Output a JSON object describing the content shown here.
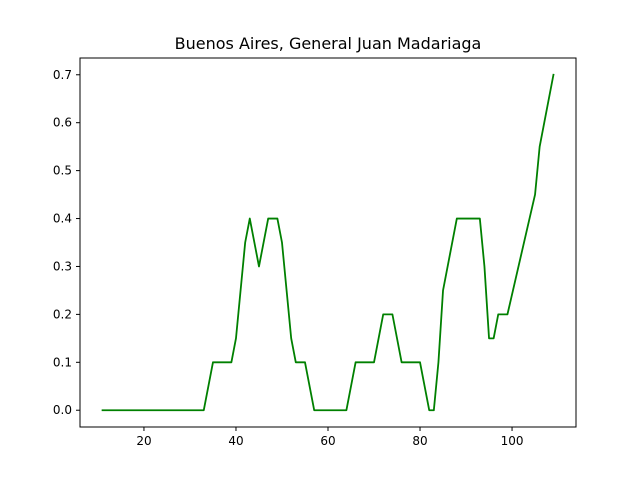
{
  "chart_data": {
    "type": "line",
    "title": "Buenos Aires, General Juan Madariaga",
    "xlabel": "",
    "ylabel": "",
    "xlim": [
      6.1,
      113.9
    ],
    "ylim": [
      -0.035,
      0.735
    ],
    "x_ticks": [
      20,
      40,
      60,
      80,
      100
    ],
    "y_ticks": [
      0.0,
      0.1,
      0.2,
      0.3,
      0.4,
      0.5,
      0.6,
      0.7
    ],
    "x_tick_labels": [
      "20",
      "40",
      "60",
      "80",
      "100"
    ],
    "y_tick_labels": [
      "0.0",
      "0.1",
      "0.2",
      "0.3",
      "0.4",
      "0.5",
      "0.6",
      "0.7"
    ],
    "grid": false,
    "legend": "none",
    "series": [
      {
        "color": "#008000",
        "x": [
          11,
          33,
          35,
          39,
          40,
          42,
          43,
          45,
          47,
          49,
          50,
          51,
          52,
          53,
          55,
          57,
          64,
          66,
          70,
          72,
          74,
          76,
          80,
          82,
          83,
          84,
          85,
          88,
          93,
          94,
          95,
          96,
          97,
          99,
          105,
          106,
          107,
          109
        ],
        "y": [
          0.0,
          0.0,
          0.1,
          0.1,
          0.15,
          0.35,
          0.4,
          0.3,
          0.4,
          0.4,
          0.35,
          0.25,
          0.15,
          0.1,
          0.1,
          0.0,
          0.0,
          0.1,
          0.1,
          0.2,
          0.2,
          0.1,
          0.1,
          0.0,
          0.0,
          0.1,
          0.25,
          0.4,
          0.4,
          0.3,
          0.15,
          0.15,
          0.2,
          0.2,
          0.45,
          0.55,
          0.6,
          0.7
        ]
      }
    ]
  }
}
